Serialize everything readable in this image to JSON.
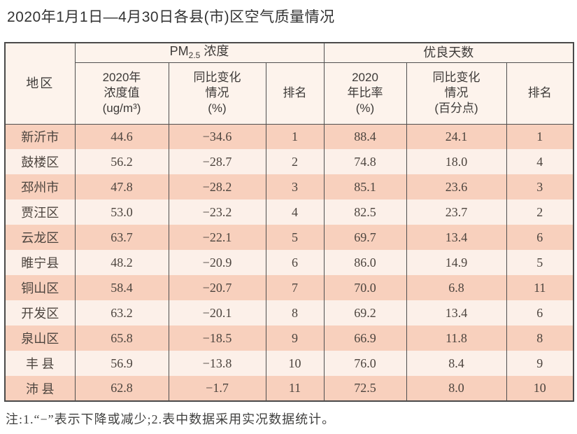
{
  "title": "2020年1月1日—4月30日各县(市)区空气质量情况",
  "note": "注:1.“−”表示下降或减少;2.表中数据采用实况数据统计。",
  "colors": {
    "stripe_dark": "#f8d0bd",
    "stripe_light": "#fcf0e9",
    "header_bg": "#fdf3ec",
    "border": "#4f4f4f",
    "text": "#4c443e"
  },
  "table": {
    "region_header": "地区",
    "pm_group": {
      "prefix": "PM",
      "sub": "2.5",
      "suffix": "浓度"
    },
    "good_days_group": "优良天数",
    "sub_headers": {
      "pm_value": [
        "2020年",
        "浓度值",
        "(ug/m³)"
      ],
      "pm_change": [
        "同比变化",
        "情况",
        "(%)"
      ],
      "pm_rank": "排名",
      "gd_ratio": [
        "2020",
        "年比率",
        "(%)"
      ],
      "gd_change": [
        "同比变化",
        "情况",
        "(百分点)"
      ],
      "gd_rank": "排名"
    },
    "columns_order": [
      "region",
      "pm_value",
      "pm_change",
      "pm_rank",
      "gd_ratio",
      "gd_change",
      "gd_rank"
    ],
    "rows": [
      {
        "region": "新沂市",
        "pm_value": "44.6",
        "pm_change": "−34.6",
        "pm_rank": "1",
        "gd_ratio": "88.4",
        "gd_change": "24.1",
        "gd_rank": "1"
      },
      {
        "region": "鼓楼区",
        "pm_value": "56.2",
        "pm_change": "−28.7",
        "pm_rank": "2",
        "gd_ratio": "74.8",
        "gd_change": "18.0",
        "gd_rank": "4"
      },
      {
        "region": "邳州市",
        "pm_value": "47.8",
        "pm_change": "−28.2",
        "pm_rank": "3",
        "gd_ratio": "85.1",
        "gd_change": "23.6",
        "gd_rank": "3"
      },
      {
        "region": "贾汪区",
        "pm_value": "53.0",
        "pm_change": "−23.2",
        "pm_rank": "4",
        "gd_ratio": "82.5",
        "gd_change": "23.7",
        "gd_rank": "2"
      },
      {
        "region": "云龙区",
        "pm_value": "63.7",
        "pm_change": "−22.1",
        "pm_rank": "5",
        "gd_ratio": "69.7",
        "gd_change": "13.4",
        "gd_rank": "6"
      },
      {
        "region": "睢宁县",
        "pm_value": "48.2",
        "pm_change": "−20.9",
        "pm_rank": "6",
        "gd_ratio": "86.0",
        "gd_change": "14.9",
        "gd_rank": "5"
      },
      {
        "region": "铜山区",
        "pm_value": "58.4",
        "pm_change": "−20.7",
        "pm_rank": "7",
        "gd_ratio": "70.0",
        "gd_change": "6.8",
        "gd_rank": "11"
      },
      {
        "region": "开发区",
        "pm_value": "63.2",
        "pm_change": "−20.1",
        "pm_rank": "8",
        "gd_ratio": "69.2",
        "gd_change": "13.4",
        "gd_rank": "6"
      },
      {
        "region": "泉山区",
        "pm_value": "65.8",
        "pm_change": "−18.5",
        "pm_rank": "9",
        "gd_ratio": "66.9",
        "gd_change": "11.8",
        "gd_rank": "8"
      },
      {
        "region": "丰 县",
        "pm_value": "56.9",
        "pm_change": "−13.8",
        "pm_rank": "10",
        "gd_ratio": "76.0",
        "gd_change": "8.4",
        "gd_rank": "9"
      },
      {
        "region": "沛 县",
        "pm_value": "62.8",
        "pm_change": "−1.7",
        "pm_rank": "11",
        "gd_ratio": "72.5",
        "gd_change": "8.0",
        "gd_rank": "10"
      }
    ]
  }
}
